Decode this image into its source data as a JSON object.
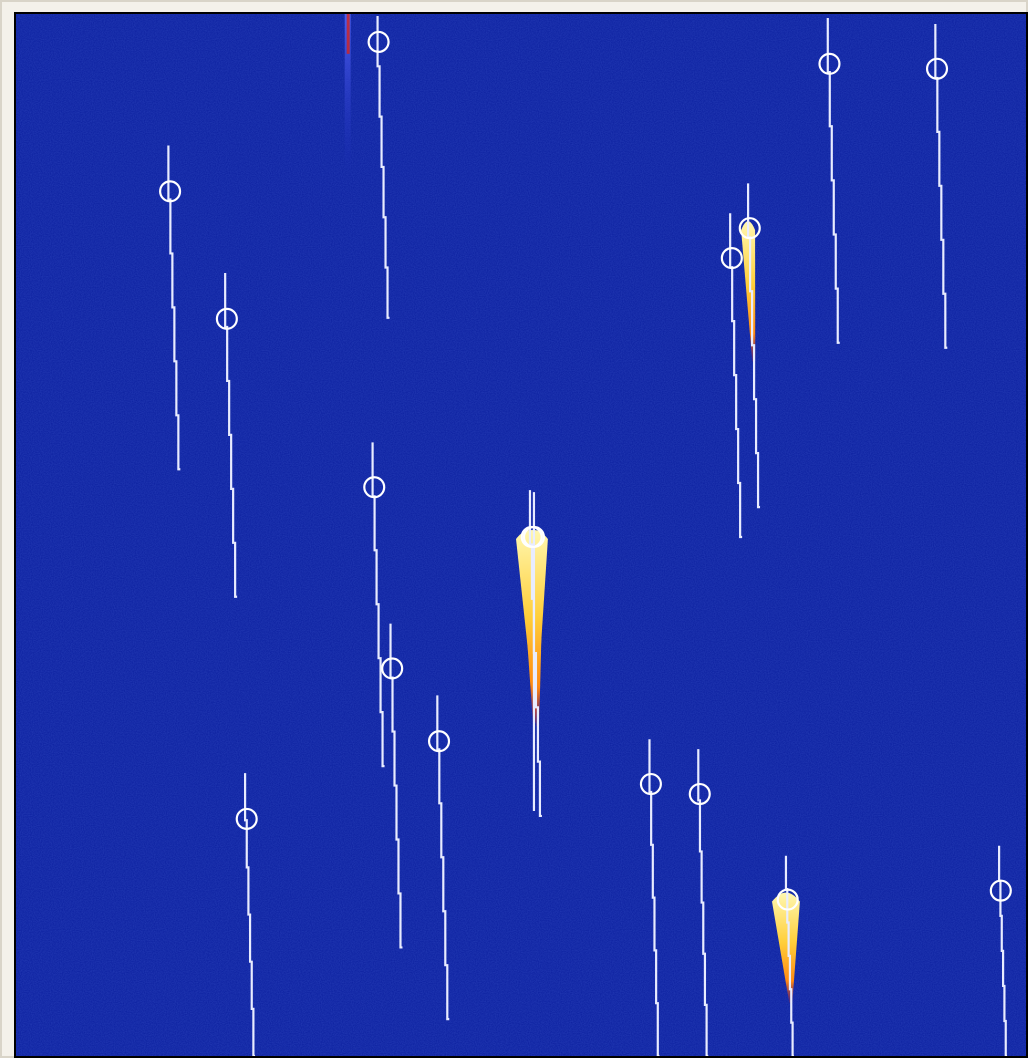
{
  "colors": {
    "background": "#0a1e9e",
    "background_dark": "#071574",
    "track": "#e8ecff",
    "marker": "#ffffff",
    "hot_core": "#fff7b0",
    "hot_mid": "#ffb21a",
    "hot_edge": "#d6231e"
  },
  "plot": {
    "type": "track-detection-spectrogram",
    "detections": [
      {
        "id": "det-1",
        "intensity": "faint"
      },
      {
        "id": "det-2",
        "intensity": "faint"
      },
      {
        "id": "det-3",
        "intensity": "faint"
      },
      {
        "id": "det-4",
        "intensity": "faint"
      },
      {
        "id": "det-5",
        "intensity": "faint"
      },
      {
        "id": "det-6",
        "intensity": "medium"
      },
      {
        "id": "det-7",
        "intensity": "faint"
      },
      {
        "id": "det-8",
        "intensity": "faint"
      },
      {
        "id": "det-9",
        "intensity": "faint"
      },
      {
        "id": "det-10",
        "intensity": "strong"
      },
      {
        "id": "det-11",
        "intensity": "faint"
      },
      {
        "id": "det-12",
        "intensity": "faint"
      },
      {
        "id": "det-13",
        "intensity": "faint"
      },
      {
        "id": "det-14",
        "intensity": "strong"
      },
      {
        "id": "det-15",
        "intensity": "faint"
      },
      {
        "id": "det-16",
        "intensity": "faint"
      },
      {
        "id": "det-17",
        "intensity": "strong"
      }
    ]
  }
}
